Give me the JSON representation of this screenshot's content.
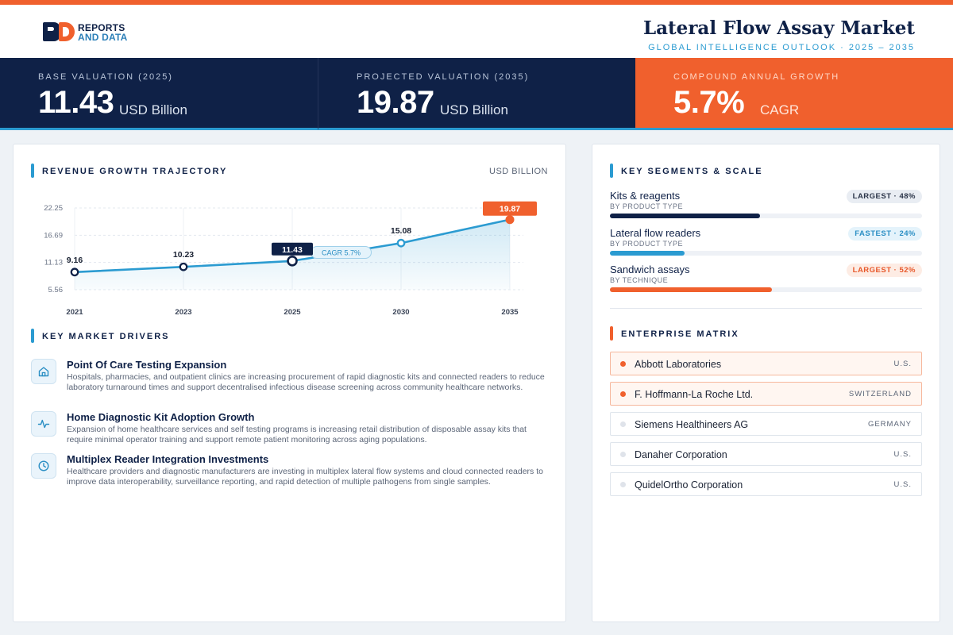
{
  "header": {
    "logo_line1": "REPORTS",
    "logo_line2": "AND DATA",
    "title": "Lateral Flow Assay Market",
    "subtitle": "GLOBAL INTELLIGENCE OUTLOOK  ·  2025 – 2035"
  },
  "kpis": [
    {
      "label": "BASE VALUATION (2025)",
      "value": "11.43",
      "unit": "USD Billion"
    },
    {
      "label": "PROJECTED VALUATION (2035)",
      "value": "19.87",
      "unit": "USD Billion"
    },
    {
      "label": "COMPOUND ANNUAL GROWTH",
      "value": "5.7%",
      "unit": "CAGR"
    }
  ],
  "revenue": {
    "title": "REVENUE GROWTH TRAJECTORY",
    "unit": "USD BILLION",
    "cagr_label": "CAGR 5.7%"
  },
  "chart_data": {
    "type": "line",
    "title": "REVENUE GROWTH TRAJECTORY",
    "ylabel": "USD BILLION",
    "categories": [
      "2021",
      "2023",
      "2025",
      "2030",
      "2035"
    ],
    "values": [
      9.16,
      10.23,
      11.43,
      15.08,
      19.87
    ],
    "data_labels": [
      "9.16",
      "10.23",
      "11.43",
      "15.08",
      "19.87"
    ],
    "yticks": [
      5.56,
      11.13,
      16.69,
      22.25
    ],
    "ytick_labels": [
      "5.56",
      "11.13",
      "16.69",
      "22.25"
    ],
    "ylim": [
      5.56,
      22.25
    ],
    "grid": true,
    "highlighted": {
      "2025": "base",
      "2035": "projection"
    },
    "colors": {
      "line": "#2b9bd1",
      "base": "#0f2147",
      "projection": "#f0602d"
    }
  },
  "drivers": {
    "title": "KEY MARKET DRIVERS",
    "items": [
      {
        "icon": "home-icon",
        "title": "Point Of Care Testing Expansion",
        "desc": "Hospitals, pharmacies, and outpatient clinics are increasing procurement of rapid diagnostic kits and connected readers to reduce laboratory turnaround times and support decentralised infectious disease screening across community healthcare networks."
      },
      {
        "icon": "pulse-icon",
        "title": "Home Diagnostic Kit Adoption Growth",
        "desc": "Expansion of home healthcare services and self testing programs is increasing retail distribution of disposable assay kits that require minimal operator training and support remote patient monitoring across aging populations."
      },
      {
        "icon": "clock-icon",
        "title": "Multiplex Reader Integration Investments",
        "desc": "Healthcare providers and diagnostic manufacturers are investing in multiplex lateral flow systems and cloud connected readers to improve data interoperability, surveillance reporting, and rapid detection of multiple pathogens from single samples."
      }
    ]
  },
  "segments": {
    "title": "KEY SEGMENTS & SCALE",
    "items": [
      {
        "name": "Kits & reagents",
        "sub": "BY PRODUCT TYPE",
        "badge": "LARGEST · 48%",
        "share": 48,
        "color": "#0f2147",
        "badge_bg": "#e9edf3",
        "badge_fg": "#2a3448"
      },
      {
        "name": "Lateral flow readers",
        "sub": "BY PRODUCT TYPE",
        "badge": "FASTEST · 24%",
        "share": 24,
        "color": "#2b9bd1",
        "badge_bg": "#e4f3fb",
        "badge_fg": "#2b8fc4"
      },
      {
        "name": "Sandwich assays",
        "sub": "BY TECHNIQUE",
        "badge": "LARGEST · 52%",
        "share": 52,
        "color": "#f0602d",
        "badge_bg": "#fdece4",
        "badge_fg": "#e8582a"
      }
    ]
  },
  "enterprise": {
    "title": "ENTERPRISE MATRIX",
    "items": [
      {
        "name": "Abbott Laboratories",
        "country": "U.S.",
        "highlight": true
      },
      {
        "name": "F. Hoffmann-La Roche Ltd.",
        "country": "SWITZERLAND",
        "highlight": true
      },
      {
        "name": "Siemens Healthineers AG",
        "country": "GERMANY",
        "highlight": false
      },
      {
        "name": "Danaher Corporation",
        "country": "U.S.",
        "highlight": false
      },
      {
        "name": "QuidelOrtho Corporation",
        "country": "U.S.",
        "highlight": false
      }
    ]
  }
}
